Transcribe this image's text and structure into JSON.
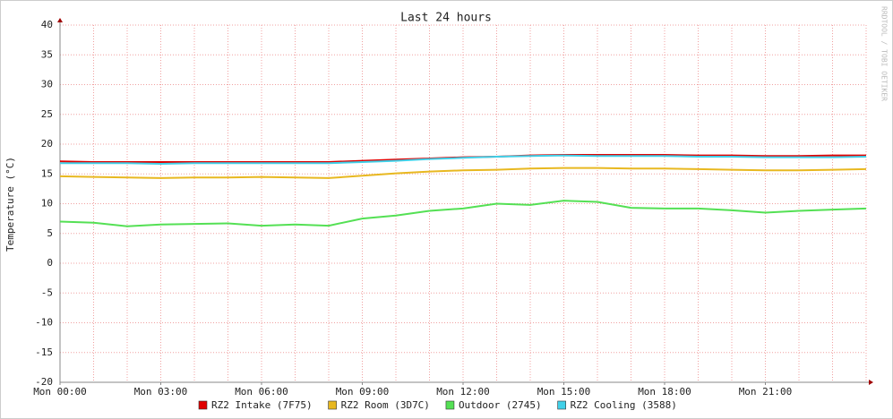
{
  "chart_data": {
    "type": "line",
    "title": "Last 24 hours",
    "y_label": "Temperature (°C)",
    "watermark": "RRDTOOL / TOBI OETIKER",
    "categories": [
      "Mon 00:00",
      null,
      null,
      "Mon 03:00",
      null,
      null,
      "Mon 06:00",
      null,
      null,
      "Mon 09:00",
      null,
      null,
      "Mon 12:00",
      null,
      null,
      "Mon 15:00",
      null,
      null,
      "Mon 18:00",
      null,
      null,
      "Mon 21:00",
      null,
      null,
      null
    ],
    "series": [
      {
        "name": "RZ2 Intake (7F75)",
        "color": "#e00000",
        "values": [
          17.1,
          17,
          17,
          17,
          17,
          17,
          17,
          17,
          17,
          17.2,
          17.4,
          17.6,
          17.8,
          17.9,
          18.1,
          18.2,
          18.2,
          18.2,
          18.2,
          18.1,
          18.1,
          18,
          18,
          18.1,
          18.1
        ]
      },
      {
        "name": "RZ2 Room (3D7C)",
        "color": "#e8b820",
        "values": [
          14.6,
          14.5,
          14.4,
          14.3,
          14.4,
          14.4,
          14.5,
          14.4,
          14.3,
          14.7,
          15.1,
          15.4,
          15.6,
          15.7,
          15.9,
          16,
          16,
          15.9,
          15.9,
          15.8,
          15.7,
          15.6,
          15.6,
          15.7,
          15.8
        ]
      },
      {
        "name": "Outdoor (2745)",
        "color": "#54e054",
        "values": [
          7,
          6.8,
          6.2,
          6.5,
          6.6,
          6.7,
          6.3,
          6.5,
          6.3,
          7.5,
          8,
          8.8,
          9.2,
          10,
          9.8,
          10.5,
          10.3,
          9.3,
          9.2,
          9.2,
          8.9,
          8.5,
          8.8,
          9,
          9.2
        ]
      },
      {
        "name": "RZ2 Cooling (3588)",
        "color": "#40d0e8",
        "values": [
          16.8,
          16.8,
          16.8,
          16.7,
          16.8,
          16.8,
          16.8,
          16.8,
          16.8,
          17,
          17.2,
          17.5,
          17.7,
          17.9,
          18,
          18.1,
          18,
          18,
          18,
          17.9,
          17.9,
          17.8,
          17.8,
          17.8,
          17.9
        ]
      }
    ],
    "ylim": [
      -20,
      40
    ],
    "yticks": [
      -20,
      -15,
      -10,
      -5,
      0,
      5,
      10,
      15,
      20,
      25,
      30,
      35,
      40
    ],
    "grid": true
  }
}
